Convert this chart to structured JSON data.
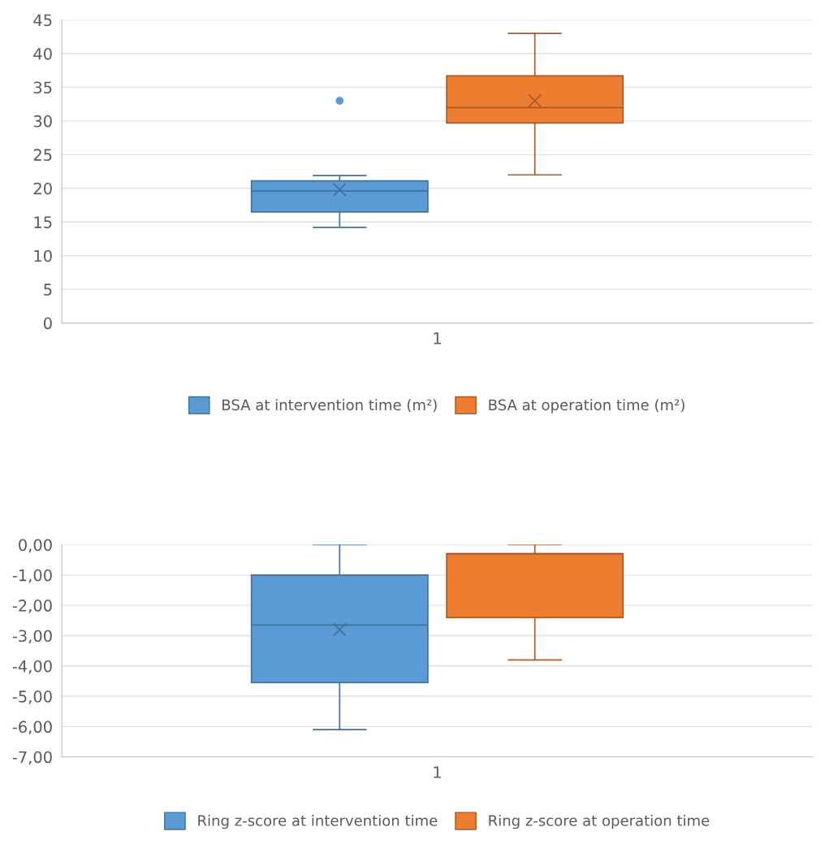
{
  "chart_data": [
    {
      "type": "box",
      "categories": [
        "1"
      ],
      "series": [
        {
          "name": "BSA at intervention time (m²)",
          "color": "#5b9bd5",
          "boxes": [
            {
              "low": 14.2,
              "q1": 16.5,
              "median": 19.6,
              "q3": 21.1,
              "high": 21.9,
              "mean": 19.8,
              "outliers": [
                33
              ]
            }
          ]
        },
        {
          "name": "BSA at operation time (m²)",
          "color": "#ed7d31",
          "boxes": [
            {
              "low": 22,
              "q1": 29.7,
              "median": 32,
              "q3": 36.7,
              "high": 43,
              "mean": 33
            }
          ]
        }
      ],
      "ylim": [
        0,
        45
      ],
      "yticks": [
        0,
        5,
        10,
        15,
        20,
        25,
        30,
        35,
        40,
        45
      ],
      "grid": "y",
      "legend": "bottom"
    },
    {
      "type": "box",
      "categories": [
        "1"
      ],
      "series": [
        {
          "name": "Ring z-score at intervention time",
          "color": "#5b9bd5",
          "boxes": [
            {
              "low": -6.1,
              "q1": -4.55,
              "median": -2.65,
              "q3": -1.0,
              "high": 0,
              "mean": -2.8
            }
          ]
        },
        {
          "name": "Ring z-score at operation time",
          "color": "#ed7d31",
          "boxes": [
            {
              "low": -3.8,
              "q1": -2.4,
              "median": -0.3,
              "q3": -0.3,
              "high": 0
            }
          ]
        }
      ],
      "ylim": [
        -7,
        0
      ],
      "yticks": [
        {
          "value": -7,
          "label": "-7,00"
        },
        {
          "value": -6,
          "label": "-6,00"
        },
        {
          "value": -5,
          "label": "-5,00"
        },
        {
          "value": -4,
          "label": "-4,00"
        },
        {
          "value": -3,
          "label": "-3,00"
        },
        {
          "value": -2,
          "label": "-2,00"
        },
        {
          "value": -1,
          "label": "-1,00"
        },
        {
          "value": 0,
          "label": "0,00"
        }
      ],
      "grid": "y",
      "legend": "bottom"
    }
  ]
}
